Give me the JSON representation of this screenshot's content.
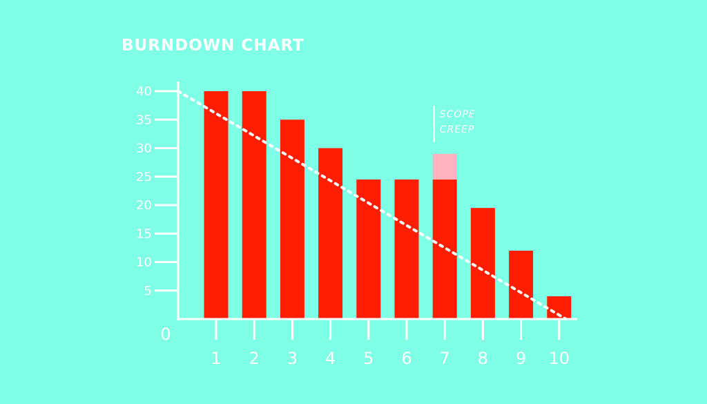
{
  "colors": {
    "background": "#7effe6",
    "bar": "#ff1e00",
    "scope_creep": "#ffb3c1",
    "axis": "#ffffff",
    "text": "#ffffff",
    "ideal_line": "#ffffff"
  },
  "chart_data": {
    "type": "bar",
    "title": "BURNDOWN CHART",
    "categories": [
      "1",
      "2",
      "3",
      "4",
      "5",
      "6",
      "7",
      "8",
      "9",
      "10"
    ],
    "values": [
      40,
      40,
      35,
      30,
      24.5,
      24.5,
      24.5,
      19.5,
      12,
      4
    ],
    "scope_creep": {
      "category": "7",
      "from": 24.5,
      "to": 29
    },
    "ideal_line": {
      "type": "line",
      "style": "dotted",
      "from": {
        "x": 0,
        "y": 40
      },
      "to": {
        "x": 10,
        "y": 0
      }
    },
    "y_ticks": [
      5,
      10,
      15,
      20,
      25,
      30,
      35,
      40
    ],
    "origin_label": "0",
    "xlabel": "",
    "ylabel": "",
    "ylim": [
      0,
      40
    ],
    "grid": false,
    "annotations": [
      {
        "lines": [
          "SCOPE",
          "CREEP"
        ],
        "category": "7"
      }
    ]
  }
}
